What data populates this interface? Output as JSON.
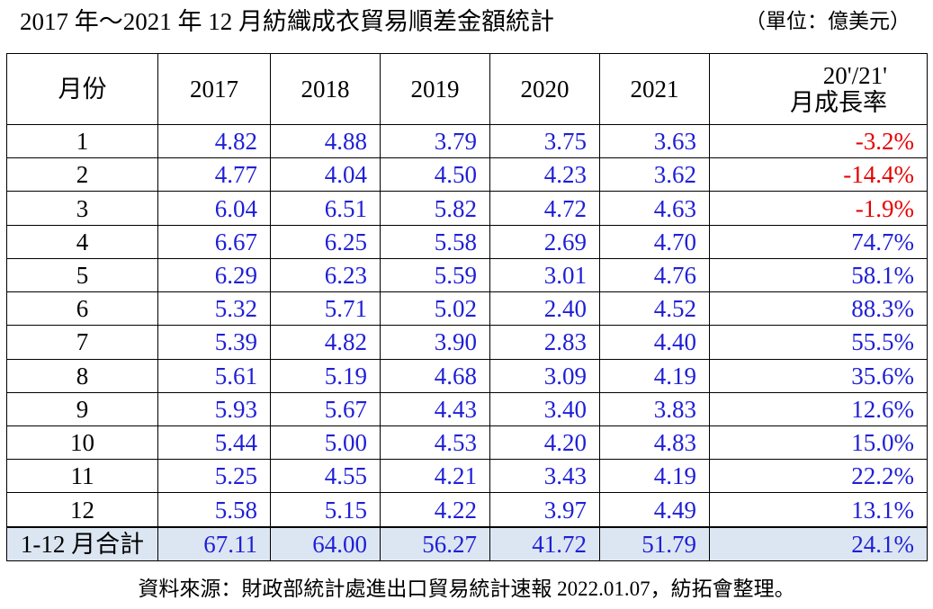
{
  "title": "2017 年～2021 年 12 月紡織成衣貿易順差金額統計",
  "unit": "（單位：億美元）",
  "table": {
    "headers": {
      "month": "月份",
      "years": [
        "2017",
        "2018",
        "2019",
        "2020",
        "2021"
      ],
      "growth_line1": "20'/21'",
      "growth_line2": "月成長率"
    },
    "rows": [
      {
        "month": "1",
        "values": [
          "4.82",
          "4.88",
          "3.79",
          "3.75",
          "3.63"
        ],
        "growth": "-3.2%",
        "negative": true
      },
      {
        "month": "2",
        "values": [
          "4.77",
          "4.04",
          "4.50",
          "4.23",
          "3.62"
        ],
        "growth": "-14.4%",
        "negative": true
      },
      {
        "month": "3",
        "values": [
          "6.04",
          "6.51",
          "5.82",
          "4.72",
          "4.63"
        ],
        "growth": "-1.9%",
        "negative": true
      },
      {
        "month": "4",
        "values": [
          "6.67",
          "6.25",
          "5.58",
          "2.69",
          "4.70"
        ],
        "growth": "74.7%",
        "negative": false
      },
      {
        "month": "5",
        "values": [
          "6.29",
          "6.23",
          "5.59",
          "3.01",
          "4.76"
        ],
        "growth": "58.1%",
        "negative": false
      },
      {
        "month": "6",
        "values": [
          "5.32",
          "5.71",
          "5.02",
          "2.40",
          "4.52"
        ],
        "growth": "88.3%",
        "negative": false
      },
      {
        "month": "7",
        "values": [
          "5.39",
          "4.82",
          "3.90",
          "2.83",
          "4.40"
        ],
        "growth": "55.5%",
        "negative": false
      },
      {
        "month": "8",
        "values": [
          "5.61",
          "5.19",
          "4.68",
          "3.09",
          "4.19"
        ],
        "growth": "35.6%",
        "negative": false
      },
      {
        "month": "9",
        "values": [
          "5.93",
          "5.67",
          "4.43",
          "3.40",
          "3.83"
        ],
        "growth": "12.6%",
        "negative": false
      },
      {
        "month": "10",
        "values": [
          "5.44",
          "5.00",
          "4.53",
          "4.20",
          "4.83"
        ],
        "growth": "15.0%",
        "negative": false
      },
      {
        "month": "11",
        "values": [
          "5.25",
          "4.55",
          "4.21",
          "3.43",
          "4.19"
        ],
        "growth": "22.2%",
        "negative": false
      },
      {
        "month": "12",
        "values": [
          "5.58",
          "5.15",
          "4.22",
          "3.97",
          "4.49"
        ],
        "growth": "13.1%",
        "negative": false
      }
    ],
    "total": {
      "label": "1-12 月合計",
      "values": [
        "67.11",
        "64.00",
        "56.27",
        "41.72",
        "51.79"
      ],
      "growth": "24.1%"
    }
  },
  "source": "資料來源：財政部統計處進出口貿易統計速報 2022.01.07，紡拓會整理。",
  "colors": {
    "value_blue": "#1f1fd6",
    "negative_red": "#e60000",
    "total_row_bg": "#dce6f2"
  }
}
